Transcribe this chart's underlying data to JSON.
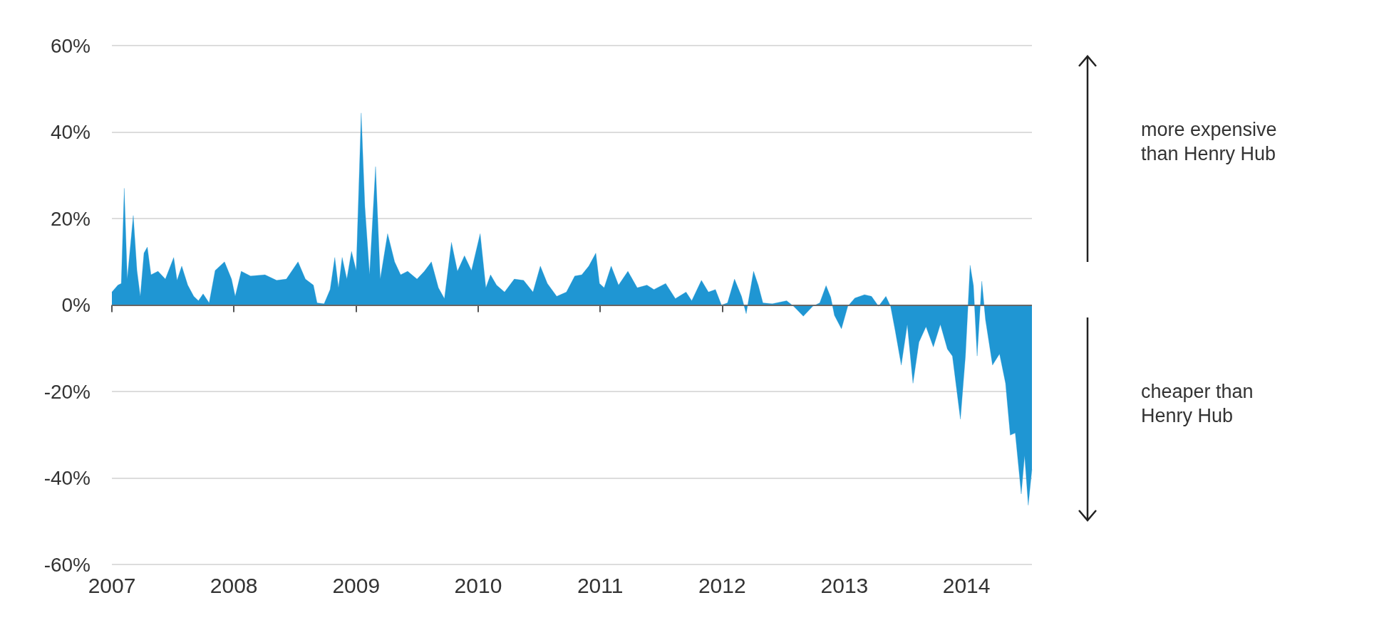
{
  "chart_data": {
    "type": "area",
    "x": [
      "2007-01-01",
      "2007-01-19",
      "2007-01-29",
      "2007-02-07",
      "2007-02-16",
      "2007-03-06",
      "2007-03-17",
      "2007-03-27",
      "2007-04-07",
      "2007-04-17",
      "2007-04-28",
      "2007-05-19",
      "2007-06-10",
      "2007-07-05",
      "2007-07-15",
      "2007-07-29",
      "2007-08-16",
      "2007-09-03",
      "2007-09-17",
      "2007-10-01",
      "2007-10-19",
      "2007-11-06",
      "2007-12-04",
      "2007-12-25",
      "2008-01-05",
      "2008-01-23",
      "2008-02-20",
      "2008-04-03",
      "2008-05-08",
      "2008-06-06",
      "2008-07-11",
      "2008-08-02",
      "2008-08-26",
      "2008-09-06",
      "2008-09-27",
      "2008-10-15",
      "2008-10-29",
      "2008-11-09",
      "2008-11-20",
      "2008-12-04",
      "2008-12-18",
      "2009-01-01",
      "2009-01-16",
      "2009-01-27",
      "2009-02-10",
      "2009-02-28",
      "2009-03-14",
      "2009-04-05",
      "2009-04-26",
      "2009-05-14",
      "2009-06-04",
      "2009-07-02",
      "2009-07-24",
      "2009-08-14",
      "2009-09-04",
      "2009-09-22",
      "2009-10-13",
      "2009-10-31",
      "2009-11-21",
      "2009-12-12",
      "2010-01-07",
      "2010-01-24",
      "2010-02-07",
      "2010-02-25",
      "2010-03-21",
      "2010-04-19",
      "2010-05-17",
      "2010-06-14",
      "2010-07-06",
      "2010-07-27",
      "2010-08-24",
      "2010-09-22",
      "2010-10-17",
      "2010-11-07",
      "2010-11-28",
      "2010-12-19",
      "2010-12-30",
      "2011-01-13",
      "2011-02-03",
      "2011-02-25",
      "2011-03-25",
      "2011-04-22",
      "2011-05-21",
      "2011-06-11",
      "2011-07-16",
      "2011-08-14",
      "2011-09-15",
      "2011-10-02",
      "2011-10-31",
      "2011-11-21",
      "2011-12-12",
      "2011-12-30",
      "2012-01-17",
      "2012-02-07",
      "2012-02-28",
      "2012-03-13",
      "2012-04-04",
      "2012-04-18",
      "2012-05-02",
      "2012-05-30",
      "2012-07-12",
      "2012-08-02",
      "2012-08-31",
      "2012-09-28",
      "2012-10-19",
      "2012-11-07",
      "2012-11-21",
      "2012-12-02",
      "2012-12-23",
      "2013-01-11",
      "2013-02-01",
      "2013-03-02",
      "2013-03-23",
      "2013-04-13",
      "2013-05-05",
      "2013-05-19",
      "2013-06-02",
      "2013-06-20",
      "2013-07-08",
      "2013-07-25",
      "2013-08-12",
      "2013-09-02",
      "2013-09-24",
      "2013-10-15",
      "2013-11-05",
      "2013-11-20",
      "2013-12-14",
      "2013-12-29",
      "2014-01-12",
      "2014-01-22",
      "2014-02-02",
      "2014-02-16",
      "2014-02-27",
      "2014-03-20",
      "2014-04-10",
      "2014-04-28",
      "2014-05-12",
      "2014-05-27",
      "2014-06-14",
      "2014-06-24",
      "2014-07-05",
      "2014-07-16"
    ],
    "series": [
      {
        "color": "#1f96d3",
        "values": [
          3,
          4.6,
          5,
          27,
          6,
          20.7,
          8,
          2,
          12,
          13.4,
          7,
          7.8,
          6,
          11,
          5.7,
          9,
          4.6,
          2,
          1,
          2.6,
          0.5,
          8,
          10,
          6,
          2,
          7.8,
          6.7,
          7,
          5.7,
          6,
          10,
          6,
          4.6,
          0.5,
          0.3,
          3.6,
          11,
          4,
          11,
          6,
          12.4,
          8,
          44.4,
          22.7,
          7,
          32,
          6,
          16.5,
          10,
          7,
          7.8,
          6,
          7.8,
          10,
          4,
          1.5,
          14.5,
          7.8,
          11.4,
          8,
          16.5,
          4,
          7,
          4.6,
          3,
          6,
          5.7,
          3,
          9,
          5,
          2,
          3,
          6.7,
          7,
          9,
          12,
          5,
          4,
          9,
          4.6,
          7.8,
          4,
          4.6,
          3.6,
          5,
          1.5,
          3,
          1,
          5.7,
          3,
          3.6,
          0,
          0.5,
          6,
          2,
          -2,
          7.8,
          4.6,
          0.5,
          0.3,
          1,
          -0.3,
          -2.6,
          -0.3,
          0.5,
          4.5,
          1.8,
          -2.4,
          -5.5,
          -0.3,
          1.6,
          2.4,
          2,
          -0.3,
          2,
          -0.3,
          -6,
          -13.9,
          -4.5,
          -18.1,
          -8.6,
          -5,
          -9.7,
          -4.5,
          -10.2,
          -11.8,
          -26.4,
          -11.8,
          9.2,
          4.5,
          -11.8,
          5.5,
          -3.4,
          -13.9,
          -11.3,
          -18.1,
          -30.1,
          -29.6,
          -43.7,
          -34.8,
          -46.3,
          -38
        ]
      }
    ],
    "xlim": [
      "2007-01-01",
      "2014-07-16"
    ],
    "xticks": [
      "2007",
      "2008",
      "2009",
      "2010",
      "2011",
      "2012",
      "2013",
      "2014"
    ],
    "ylim": [
      -60,
      60
    ],
    "yticks": [
      {
        "value": -60,
        "label": "-60%"
      },
      {
        "value": -40,
        "label": "-40%"
      },
      {
        "value": -20,
        "label": "-20%"
      },
      {
        "value": 0,
        "label": "0%"
      },
      {
        "value": 20,
        "label": "20%"
      },
      {
        "value": 40,
        "label": "40%"
      },
      {
        "value": 60,
        "label": "60%"
      }
    ],
    "grid": "y",
    "annotations": [
      "more expensive than Henry Hub",
      "cheaper than Henry Hub"
    ]
  }
}
